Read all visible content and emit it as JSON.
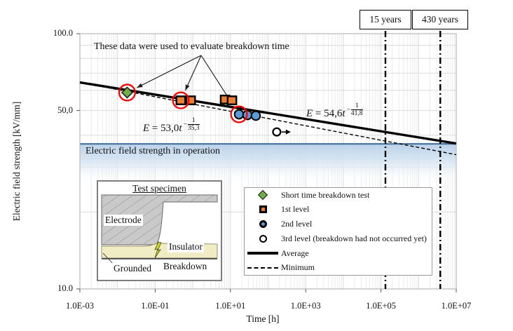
{
  "figure": {
    "annotation": "These data were used to evaluate breakdown time",
    "band_label": "Electric field strength in operation",
    "equations": [
      {
        "sym": "E",
        "rel": " = ",
        "coeff": "53,0",
        "var": "t",
        "sign": "−",
        "num": "1",
        "den": "35,3"
      },
      {
        "sym": "E",
        "rel": " = ",
        "coeff": "54,6",
        "var": "t",
        "sign": "−",
        "num": "1",
        "den": "41,8"
      }
    ]
  },
  "legend": {
    "items": [
      {
        "label": "Short time breakdown test",
        "marker": "diamond"
      },
      {
        "label": "1st level",
        "marker": "square"
      },
      {
        "label": "2nd level",
        "marker": "circle"
      },
      {
        "label": "3rd level (breakdown had not occurred yet)",
        "marker": "open-circle"
      },
      {
        "label": "Average",
        "marker": "solid-line"
      },
      {
        "label": "Minimum",
        "marker": "dashed-line"
      }
    ]
  },
  "inset": {
    "title": "Test specimen",
    "labels": {
      "electrode": "Electrode",
      "insulator": "Insulator",
      "grounded": "Grounded",
      "breakdown": "Breakdown"
    }
  },
  "chart_data": {
    "type": "scatter",
    "x_axis": {
      "label": "Time [h]",
      "scale": "log",
      "range_log10": [
        -3,
        7
      ],
      "tick_labels": [
        "1.0E-03",
        "1.0E-01",
        "1.0E+01",
        "1.0E+03",
        "1.0E+05",
        "1.0E+07"
      ],
      "tick_log10": [
        -3,
        -1,
        1,
        3,
        5,
        7
      ]
    },
    "y_axis": {
      "label": "Electric field strength [kV/mm]",
      "scale": "log",
      "range": [
        10,
        100
      ],
      "tick_labels": [
        "100.0",
        "50,0",
        "10.0"
      ],
      "tick_values": [
        100,
        50,
        10
      ],
      "minor_grid_values": [
        20,
        30,
        40,
        50,
        60,
        70,
        80,
        90
      ]
    },
    "series": [
      {
        "name": "Short time breakdown test",
        "marker": "diamond",
        "color": "#70AD47",
        "points": [
          {
            "t": 0.018,
            "E": 58.8,
            "highlight": true
          }
        ]
      },
      {
        "name": "1st level",
        "marker": "square",
        "color": "#ED7D31",
        "points": [
          {
            "t": 0.48,
            "E": 54.8,
            "highlight": true
          },
          {
            "t": 0.88,
            "E": 54.8
          },
          {
            "t": 7.2,
            "E": 55.2
          },
          {
            "t": 11.0,
            "E": 54.8
          }
        ]
      },
      {
        "name": "2nd level",
        "marker": "circle",
        "color": "#5B9BD5",
        "points": [
          {
            "t": 16.9,
            "E": 48.3,
            "highlight": true
          },
          {
            "t": 28.2,
            "E": 48.0
          },
          {
            "t": 47.2,
            "E": 47.7
          }
        ]
      },
      {
        "name": "3rd level (breakdown had not occurred yet)",
        "marker": "open-circle",
        "color": "#FFFFFF",
        "arrow": "right",
        "points": [
          {
            "t": 170,
            "E": 41.2
          }
        ]
      }
    ],
    "trend_lines": [
      {
        "name": "Average",
        "style": "solid",
        "coeff": 54.6,
        "inverse_exponent": 41.8
      },
      {
        "name": "Minimum",
        "style": "dashed",
        "coeff": 53.0,
        "inverse_exponent": 35.3
      }
    ],
    "band": {
      "label": "Electric field strength in operation",
      "top_value_kV_mm": 37,
      "color": "#BDD7EE"
    },
    "reference_lines": [
      {
        "label": "15 years",
        "hours": 131400
      },
      {
        "label": "430 years",
        "hours": 3766800
      }
    ],
    "highlight_note": "red circles mark the points referenced by the annotation arrows"
  }
}
